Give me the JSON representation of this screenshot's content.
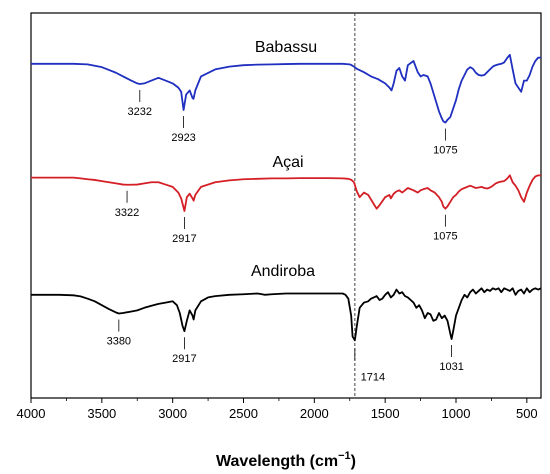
{
  "chart_data": {
    "type": "line",
    "xlabel": "Wavelength (cm",
    "xlabel_sup": "−1",
    "xlabel_close": ")",
    "xlim": [
      4000,
      400
    ],
    "x_ticks": [
      4000,
      3500,
      3000,
      2500,
      2000,
      1500,
      1000,
      500
    ],
    "x_reversed": true,
    "y_ticks_shown": false,
    "grid": false,
    "reference_line_x": 1714,
    "reference_line_style": "dashed",
    "colors": {
      "Babassu": "#1f2fbf",
      "Açai": "#d41f26",
      "Andiroba": "#000000"
    },
    "series": [
      {
        "name": "Babassu",
        "color": "#1f2fbf",
        "x": [
          4000,
          3900,
          3800,
          3700,
          3600,
          3500,
          3450,
          3400,
          3350,
          3300,
          3250,
          3232,
          3200,
          3150,
          3100,
          3050,
          3000,
          2960,
          2940,
          2923,
          2905,
          2880,
          2860,
          2853,
          2840,
          2800,
          2700,
          2600,
          2500,
          2400,
          2300,
          2200,
          2100,
          2000,
          1900,
          1850,
          1800,
          1750,
          1740,
          1720,
          1700,
          1650,
          1600,
          1550,
          1500,
          1470,
          1455,
          1440,
          1420,
          1400,
          1380,
          1360,
          1340,
          1300,
          1270,
          1250,
          1230,
          1200,
          1180,
          1150,
          1120,
          1100,
          1090,
          1075,
          1060,
          1040,
          1020,
          1000,
          980,
          960,
          940,
          920,
          900,
          880,
          860,
          840,
          820,
          800,
          780,
          760,
          740,
          720,
          700,
          680,
          660,
          640,
          620,
          600,
          580,
          560,
          540,
          520,
          500,
          480,
          460,
          440,
          420,
          400
        ],
        "values": [
          0.4,
          0.4,
          0.4,
          0.4,
          0.38,
          0.28,
          0.18,
          0.08,
          -0.05,
          -0.18,
          -0.3,
          -0.32,
          -0.3,
          -0.2,
          -0.1,
          -0.2,
          -0.3,
          -0.45,
          -0.6,
          -1.25,
          -0.7,
          -0.55,
          -0.82,
          -0.85,
          -0.55,
          -0.05,
          0.2,
          0.3,
          0.35,
          0.37,
          0.38,
          0.39,
          0.4,
          0.4,
          0.4,
          0.4,
          0.4,
          0.38,
          0.36,
          0.3,
          0.22,
          0.1,
          -0.05,
          -0.15,
          -0.3,
          -0.45,
          -0.55,
          -0.3,
          0.15,
          0.25,
          -0.05,
          -0.2,
          0.35,
          0.5,
          0.1,
          -0.05,
          0.0,
          -0.05,
          -0.3,
          -0.8,
          -1.3,
          -1.55,
          -1.65,
          -1.7,
          -1.6,
          -1.5,
          -1.2,
          -0.9,
          -0.5,
          -0.2,
          0.0,
          0.2,
          0.28,
          0.22,
          0.08,
          0.0,
          -0.02,
          0.0,
          0.1,
          0.2,
          0.3,
          0.35,
          0.38,
          0.4,
          0.45,
          0.6,
          0.72,
          0.2,
          -0.3,
          -0.45,
          -0.6,
          -0.2,
          -0.2,
          0.0,
          0.3,
          0.5,
          0.62,
          0.62
        ],
        "peaks": [
          {
            "x": 3232,
            "label": "3232"
          },
          {
            "x": 2923,
            "label": "2923"
          },
          {
            "x": 1075,
            "label": "1075"
          }
        ]
      },
      {
        "name": "Açai",
        "color": "#d41f26",
        "x": [
          4000,
          3900,
          3800,
          3700,
          3650,
          3600,
          3550,
          3500,
          3450,
          3400,
          3350,
          3322,
          3300,
          3250,
          3200,
          3150,
          3100,
          3050,
          3000,
          2960,
          2940,
          2917,
          2900,
          2880,
          2860,
          2852,
          2840,
          2800,
          2700,
          2600,
          2500,
          2400,
          2300,
          2200,
          2100,
          2000,
          1900,
          1800,
          1760,
          1740,
          1720,
          1700,
          1680,
          1650,
          1620,
          1600,
          1580,
          1560,
          1540,
          1500,
          1470,
          1460,
          1440,
          1420,
          1400,
          1380,
          1360,
          1340,
          1300,
          1270,
          1250,
          1230,
          1200,
          1180,
          1150,
          1120,
          1100,
          1090,
          1075,
          1060,
          1040,
          1020,
          1000,
          980,
          960,
          940,
          920,
          900,
          880,
          860,
          840,
          820,
          800,
          780,
          760,
          740,
          720,
          700,
          680,
          660,
          640,
          620,
          600,
          580,
          560,
          540,
          520,
          500,
          480,
          460,
          440,
          420,
          400
        ],
        "values": [
          0.45,
          0.45,
          0.45,
          0.45,
          0.42,
          0.38,
          0.35,
          0.3,
          0.25,
          0.2,
          0.15,
          0.14,
          0.14,
          0.15,
          0.2,
          0.25,
          0.25,
          0.15,
          0.05,
          -0.2,
          -0.45,
          -1.0,
          -0.4,
          -0.25,
          -0.45,
          -0.55,
          -0.3,
          0.05,
          0.25,
          0.33,
          0.38,
          0.4,
          0.42,
          0.42,
          0.43,
          0.43,
          0.43,
          0.42,
          0.4,
          0.36,
          0.25,
          -0.15,
          -0.4,
          -0.2,
          -0.3,
          -0.5,
          -0.7,
          -0.9,
          -0.75,
          -0.4,
          -0.3,
          -0.45,
          -0.25,
          -0.15,
          -0.1,
          -0.2,
          -0.1,
          0.0,
          -0.1,
          -0.2,
          -0.1,
          -0.05,
          0.0,
          -0.1,
          -0.2,
          -0.4,
          -0.6,
          -0.8,
          -0.9,
          -0.8,
          -0.6,
          -0.4,
          -0.3,
          -0.15,
          -0.05,
          0.0,
          0.05,
          0.1,
          0.05,
          0.0,
          0.02,
          0.05,
          0.0,
          -0.02,
          0.02,
          0.1,
          0.2,
          0.25,
          0.28,
          0.3,
          0.4,
          0.55,
          0.25,
          0.1,
          -0.1,
          -0.4,
          -0.6,
          -0.2,
          0.1,
          0.35,
          0.5,
          0.55,
          0.55
        ],
        "peaks": [
          {
            "x": 3322,
            "label": "3322"
          },
          {
            "x": 2917,
            "label": "2917"
          },
          {
            "x": 1075,
            "label": "1075"
          }
        ]
      },
      {
        "name": "Andiroba",
        "color": "#000000",
        "x": [
          4000,
          3900,
          3800,
          3700,
          3650,
          3600,
          3550,
          3500,
          3450,
          3400,
          3380,
          3350,
          3300,
          3250,
          3200,
          3150,
          3100,
          3050,
          3000,
          2970,
          2950,
          2930,
          2917,
          2900,
          2880,
          2860,
          2852,
          2840,
          2800,
          2750,
          2700,
          2600,
          2500,
          2400,
          2350,
          2300,
          2200,
          2100,
          2000,
          1900,
          1850,
          1800,
          1780,
          1760,
          1740,
          1730,
          1714,
          1700,
          1680,
          1650,
          1620,
          1600,
          1580,
          1560,
          1540,
          1520,
          1500,
          1480,
          1460,
          1440,
          1420,
          1400,
          1380,
          1360,
          1340,
          1320,
          1300,
          1280,
          1260,
          1240,
          1220,
          1200,
          1180,
          1160,
          1140,
          1120,
          1100,
          1080,
          1060,
          1040,
          1031,
          1020,
          1000,
          980,
          960,
          940,
          920,
          900,
          880,
          860,
          840,
          820,
          800,
          780,
          760,
          740,
          720,
          700,
          680,
          660,
          640,
          620,
          600,
          580,
          560,
          540,
          520,
          500,
          480,
          460,
          440,
          420,
          400
        ],
        "values": [
          0.2,
          0.2,
          0.2,
          0.18,
          0.14,
          0.05,
          -0.05,
          -0.2,
          -0.35,
          -0.48,
          -0.52,
          -0.5,
          -0.45,
          -0.4,
          -0.3,
          -0.22,
          -0.15,
          -0.1,
          -0.05,
          -0.2,
          -0.5,
          -1.0,
          -1.2,
          -0.8,
          -0.4,
          -0.6,
          -0.75,
          -0.4,
          -0.05,
          0.1,
          0.15,
          0.2,
          0.22,
          0.25,
          0.2,
          0.22,
          0.25,
          0.25,
          0.25,
          0.25,
          0.25,
          0.25,
          0.2,
          0.05,
          -0.6,
          -1.4,
          -1.55,
          -1.0,
          -0.3,
          -0.1,
          -0.05,
          0.05,
          0.1,
          0.15,
          0.0,
          0.05,
          0.2,
          0.3,
          0.1,
          0.2,
          0.4,
          0.25,
          0.3,
          0.15,
          0.1,
          0.0,
          -0.1,
          -0.3,
          -0.2,
          -0.4,
          -0.7,
          -0.5,
          -0.55,
          -0.8,
          -0.75,
          -0.5,
          -0.7,
          -0.6,
          -0.8,
          -1.3,
          -1.5,
          -1.2,
          -0.6,
          -0.3,
          0.0,
          0.2,
          0.1,
          0.3,
          0.4,
          0.25,
          0.35,
          0.45,
          0.3,
          0.4,
          0.35,
          0.45,
          0.4,
          0.45,
          0.3,
          0.45,
          0.4,
          0.35,
          0.45,
          0.2,
          0.35,
          0.4,
          0.25,
          0.45,
          0.3,
          0.4,
          0.45,
          0.4,
          0.45
        ],
        "peaks": [
          {
            "x": 3380,
            "label": "3380"
          },
          {
            "x": 2917,
            "label": "2917"
          },
          {
            "x": 1714,
            "label": "1714"
          },
          {
            "x": 1031,
            "label": "1031"
          }
        ]
      }
    ]
  }
}
